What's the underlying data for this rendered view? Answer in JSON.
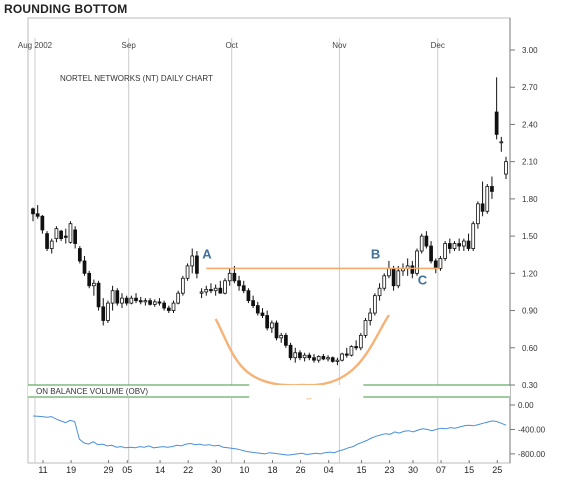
{
  "title": "ROUNDING BOTTOM",
  "colors": {
    "resistance": "#f3a86a",
    "bowl": "#f7b377",
    "point_label": "#3f6f9a",
    "obv_line": "#4a90d9",
    "band": "#3c9a3c",
    "grid": "#cccccc"
  },
  "chart_data": [
    {
      "type": "candlestick",
      "title": "NORTEL NETWORKS (NT) DAILY CHART",
      "month_labels": [
        {
          "label": "Aug 2002",
          "x": 0
        },
        {
          "label": "Sep",
          "x": 20
        },
        {
          "label": "Oct",
          "x": 42
        },
        {
          "label": "Nov",
          "x": 65
        },
        {
          "label": "Dec",
          "x": 86
        }
      ],
      "x_tick_labels": [
        {
          "label": "11",
          "x": 0
        },
        {
          "label": "19",
          "x": 6
        },
        {
          "label": "29",
          "x": 14
        },
        {
          "label": "05",
          "x": 18
        },
        {
          "label": "14",
          "x": 25
        },
        {
          "label": "22",
          "x": 31
        },
        {
          "label": "30",
          "x": 37
        },
        {
          "label": "10",
          "x": 43
        },
        {
          "label": "18",
          "x": 49
        },
        {
          "label": "26",
          "x": 55
        },
        {
          "label": "04",
          "x": 61
        },
        {
          "label": "15",
          "x": 68
        },
        {
          "label": "23",
          "x": 74
        },
        {
          "label": "30",
          "x": 79
        },
        {
          "label": "07",
          "x": 85
        },
        {
          "label": "15",
          "x": 91
        },
        {
          "label": "25",
          "x": 97
        }
      ],
      "y_ticks": [
        "3.00",
        "2.70",
        "2.40",
        "2.10",
        "1.80",
        "1.50",
        "1.20",
        "0.90",
        "0.60",
        "0.30"
      ],
      "ylim": [
        0.3,
        3.0
      ],
      "candles": [
        [
          1.72,
          1.73,
          1.62,
          1.68
        ],
        [
          1.68,
          1.75,
          1.64,
          1.66
        ],
        [
          1.66,
          1.67,
          1.52,
          1.55
        ],
        [
          1.52,
          1.54,
          1.38,
          1.4
        ],
        [
          1.4,
          1.48,
          1.36,
          1.46
        ],
        [
          1.48,
          1.58,
          1.45,
          1.56
        ],
        [
          1.54,
          1.55,
          1.46,
          1.48
        ],
        [
          1.5,
          1.56,
          1.44,
          1.49
        ],
        [
          1.45,
          1.62,
          1.44,
          1.6
        ],
        [
          1.55,
          1.58,
          1.4,
          1.44
        ],
        [
          1.4,
          1.42,
          1.28,
          1.3
        ],
        [
          1.3,
          1.34,
          1.18,
          1.2
        ],
        [
          1.2,
          1.22,
          1.08,
          1.1
        ],
        [
          1.1,
          1.15,
          1.02,
          1.12
        ],
        [
          1.12,
          1.14,
          0.9,
          0.93
        ],
        [
          0.93,
          1.0,
          0.78,
          0.82
        ],
        [
          0.82,
          0.98,
          0.8,
          0.96
        ],
        [
          0.96,
          1.1,
          0.9,
          1.06
        ],
        [
          1.06,
          1.08,
          0.94,
          0.96
        ],
        [
          0.96,
          1.04,
          0.92,
          1.0
        ],
        [
          1.0,
          1.02,
          0.94,
          0.96
        ],
        [
          0.96,
          1.02,
          0.95,
          1.0
        ],
        [
          1.0,
          1.04,
          0.96,
          0.98
        ],
        [
          0.98,
          1.01,
          0.95,
          0.97
        ],
        [
          0.97,
          1.0,
          0.94,
          0.98
        ],
        [
          0.98,
          1.0,
          0.94,
          0.95
        ],
        [
          0.95,
          0.99,
          0.93,
          0.97
        ],
        [
          0.97,
          1.0,
          0.94,
          0.96
        ],
        [
          0.96,
          0.98,
          0.9,
          0.92
        ],
        [
          0.92,
          0.94,
          0.88,
          0.9
        ],
        [
          0.9,
          0.98,
          0.88,
          0.96
        ],
        [
          0.96,
          1.06,
          0.95,
          1.04
        ],
        [
          1.04,
          1.18,
          1.02,
          1.16
        ],
        [
          1.16,
          1.28,
          1.14,
          1.26
        ],
        [
          1.26,
          1.4,
          1.2,
          1.34
        ],
        [
          1.34,
          1.38,
          1.16,
          1.2
        ],
        [
          1.04,
          1.08,
          1.0,
          1.05
        ],
        [
          1.05,
          1.1,
          1.02,
          1.07
        ],
        [
          1.07,
          1.12,
          1.04,
          1.06
        ],
        [
          1.06,
          1.11,
          1.02,
          1.08
        ],
        [
          1.08,
          1.14,
          1.04,
          1.04
        ],
        [
          1.04,
          1.16,
          1.03,
          1.14
        ],
        [
          1.14,
          1.24,
          1.1,
          1.2
        ],
        [
          1.2,
          1.26,
          1.12,
          1.14
        ],
        [
          1.14,
          1.18,
          1.06,
          1.1
        ],
        [
          1.1,
          1.14,
          1.04,
          1.06
        ],
        [
          1.06,
          1.08,
          0.96,
          0.98
        ],
        [
          0.98,
          1.02,
          0.92,
          0.94
        ],
        [
          0.94,
          0.97,
          0.86,
          0.88
        ],
        [
          0.88,
          0.92,
          0.84,
          0.86
        ],
        [
          0.86,
          0.9,
          0.74,
          0.76
        ],
        [
          0.76,
          0.82,
          0.72,
          0.8
        ],
        [
          0.8,
          0.82,
          0.66,
          0.68
        ],
        [
          0.68,
          0.72,
          0.64,
          0.7
        ],
        [
          0.7,
          0.72,
          0.6,
          0.62
        ],
        [
          0.62,
          0.64,
          0.5,
          0.52
        ],
        [
          0.52,
          0.6,
          0.48,
          0.56
        ],
        [
          0.56,
          0.58,
          0.5,
          0.52
        ],
        [
          0.52,
          0.56,
          0.49,
          0.54
        ],
        [
          0.54,
          0.56,
          0.5,
          0.52
        ],
        [
          0.52,
          0.55,
          0.48,
          0.5
        ],
        [
          0.5,
          0.54,
          0.48,
          0.53
        ],
        [
          0.53,
          0.55,
          0.5,
          0.51
        ],
        [
          0.51,
          0.54,
          0.49,
          0.52
        ],
        [
          0.52,
          0.53,
          0.48,
          0.49
        ],
        [
          0.49,
          0.52,
          0.46,
          0.5
        ],
        [
          0.5,
          0.56,
          0.49,
          0.55
        ],
        [
          0.55,
          0.6,
          0.52,
          0.54
        ],
        [
          0.54,
          0.62,
          0.53,
          0.61
        ],
        [
          0.61,
          0.66,
          0.58,
          0.6
        ],
        [
          0.6,
          0.72,
          0.58,
          0.7
        ],
        [
          0.7,
          0.84,
          0.68,
          0.82
        ],
        [
          0.82,
          0.92,
          0.78,
          0.88
        ],
        [
          0.88,
          1.04,
          0.86,
          1.02
        ],
        [
          1.02,
          1.12,
          0.98,
          1.08
        ],
        [
          1.08,
          1.2,
          1.06,
          1.18
        ],
        [
          1.18,
          1.3,
          1.16,
          1.24
        ],
        [
          1.24,
          1.26,
          1.06,
          1.1
        ],
        [
          1.1,
          1.26,
          1.08,
          1.22
        ],
        [
          1.22,
          1.28,
          1.18,
          1.24
        ],
        [
          1.24,
          1.32,
          1.18,
          1.26
        ],
        [
          1.26,
          1.3,
          1.16,
          1.2
        ],
        [
          1.2,
          1.4,
          1.18,
          1.38
        ],
        [
          1.38,
          1.52,
          1.36,
          1.5
        ],
        [
          1.5,
          1.54,
          1.4,
          1.42
        ],
        [
          1.42,
          1.46,
          1.28,
          1.3
        ],
        [
          1.3,
          1.32,
          1.2,
          1.24
        ],
        [
          1.24,
          1.34,
          1.22,
          1.32
        ],
        [
          1.32,
          1.46,
          1.3,
          1.44
        ],
        [
          1.44,
          1.48,
          1.36,
          1.4
        ],
        [
          1.4,
          1.46,
          1.38,
          1.44
        ],
        [
          1.44,
          1.48,
          1.38,
          1.42
        ],
        [
          1.42,
          1.48,
          1.38,
          1.46
        ],
        [
          1.46,
          1.52,
          1.38,
          1.4
        ],
        [
          1.4,
          1.62,
          1.38,
          1.6
        ],
        [
          1.6,
          1.78,
          1.56,
          1.76
        ],
        [
          1.76,
          1.94,
          1.66,
          1.7
        ],
        [
          1.7,
          1.92,
          1.68,
          1.9
        ],
        [
          1.9,
          1.98,
          1.8,
          1.86
        ],
        [
          2.5,
          2.78,
          2.28,
          2.32
        ],
        [
          2.26,
          2.3,
          2.18,
          2.26
        ],
        [
          2.0,
          2.14,
          1.96,
          2.1
        ]
      ],
      "points": [
        {
          "label": "A",
          "x": 37,
          "y": 1.28
        },
        {
          "label": "B",
          "x": 73,
          "y": 1.28
        },
        {
          "label": "C",
          "x": 83,
          "y": 1.12
        }
      ],
      "resistance": {
        "y": 1.24,
        "x_from": 37,
        "x_to": 86
      },
      "pattern_label": "Rounding Bottom"
    },
    {
      "type": "line",
      "title": "ON BALANCE VOLUME (OBV)",
      "y_ticks": [
        "0.00",
        "-400.00",
        "-800.00"
      ],
      "ylim": [
        -900,
        0
      ],
      "values": [
        -180,
        -185,
        -190,
        -200,
        -190,
        -230,
        -260,
        -290,
        -250,
        -270,
        -560,
        -620,
        -640,
        -600,
        -650,
        -640,
        -670,
        -660,
        -690,
        -680,
        -700,
        -690,
        -700,
        -680,
        -690,
        -670,
        -700,
        -690,
        -680,
        -690,
        -680,
        -660,
        -670,
        -640,
        -630,
        -650,
        -640,
        -660,
        -650,
        -670,
        -660,
        -690,
        -700,
        -710,
        -720,
        -740,
        -760,
        -770,
        -780,
        -790,
        -800,
        -780,
        -790,
        -800,
        -810,
        -820,
        -810,
        -800,
        -790,
        -810,
        -800,
        -790,
        -800,
        -780,
        -770,
        -780,
        -750,
        -730,
        -700,
        -680,
        -640,
        -610,
        -580,
        -540,
        -510,
        -490,
        -470,
        -480,
        -440,
        -460,
        -430,
        -420,
        -440,
        -410,
        -390,
        -400,
        -420,
        -400,
        -380,
        -390,
        -370,
        -380,
        -360,
        -340,
        -330,
        -340,
        -320,
        -300,
        -280,
        -260,
        -270,
        -300,
        -330
      ]
    }
  ]
}
